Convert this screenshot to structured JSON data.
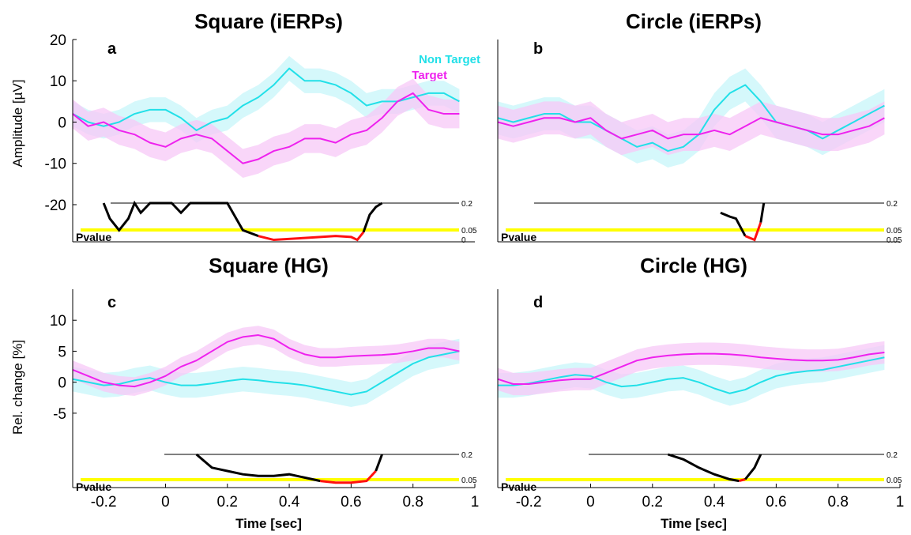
{
  "colors": {
    "non_target": "#22e0e8",
    "target": "#ee22ee",
    "non_target_band": "#c7f6fa",
    "target_band": "#f7c8f7",
    "pvalue_line": "#000000",
    "significant": "#ff1010",
    "threshold_05": "#ffff00"
  },
  "legend": {
    "non_target": "Non Target",
    "target": "Target"
  },
  "chart_data": [
    {
      "type": "line",
      "panel": "a",
      "title": "Square (iERPs)",
      "ylabel": "Amplitude [µV]",
      "xlabel": "",
      "xlim": [
        -0.3,
        1.0
      ],
      "ylim": [
        -29,
        20
      ],
      "yticks": [
        -20,
        -10,
        0,
        10,
        20
      ],
      "x_tick_labels_shown": false,
      "series": [
        {
          "name": "Non Target",
          "x": [
            -0.3,
            -0.25,
            -0.2,
            -0.15,
            -0.1,
            -0.05,
            0,
            0.05,
            0.1,
            0.15,
            0.2,
            0.25,
            0.3,
            0.35,
            0.4,
            0.45,
            0.5,
            0.55,
            0.6,
            0.65,
            0.7,
            0.75,
            0.8,
            0.85,
            0.9,
            0.95
          ],
          "values": [
            2,
            0,
            -1,
            0,
            2,
            3,
            3,
            1,
            -2,
            0,
            1,
            4,
            6,
            9,
            13,
            10,
            10,
            9,
            7,
            4,
            5,
            5,
            6,
            7,
            7,
            5
          ],
          "band": 3
        },
        {
          "name": "Target",
          "x": [
            -0.3,
            -0.25,
            -0.2,
            -0.15,
            -0.1,
            -0.05,
            0,
            0.05,
            0.1,
            0.15,
            0.2,
            0.25,
            0.3,
            0.35,
            0.4,
            0.45,
            0.5,
            0.55,
            0.6,
            0.65,
            0.7,
            0.75,
            0.8,
            0.85,
            0.9,
            0.95
          ],
          "values": [
            2,
            -1,
            0,
            -2,
            -3,
            -5,
            -6,
            -4,
            -3,
            -4,
            -7,
            -10,
            -9,
            -7,
            -6,
            -4,
            -4,
            -5,
            -3,
            -2,
            1,
            5,
            7,
            3,
            2,
            2
          ],
          "band": 3.5
        }
      ],
      "pvalue": {
        "label": "Pvalue",
        "ref_labels": [
          "0.2",
          "0.05",
          "0"
        ],
        "x": [
          -0.2,
          -0.18,
          -0.15,
          -0.12,
          -0.1,
          -0.08,
          -0.05,
          0.02,
          0.05,
          0.08,
          0.1,
          0.2,
          0.25,
          0.3,
          0.35,
          0.45,
          0.55,
          0.6,
          0.62,
          0.64,
          0.66,
          0.68,
          0.7
        ],
        "p": [
          0.2,
          0.12,
          0.06,
          0.12,
          0.2,
          0.15,
          0.2,
          0.2,
          0.15,
          0.2,
          0.2,
          0.2,
          0.06,
          0.03,
          0.01,
          0.02,
          0.03,
          0.025,
          0.01,
          0.05,
          0.14,
          0.18,
          0.2
        ]
      }
    },
    {
      "type": "line",
      "panel": "b",
      "title": "Circle (iERPs)",
      "ylabel": "",
      "xlabel": "",
      "xlim": [
        -0.3,
        1.0
      ],
      "ylim": [
        -29,
        20
      ],
      "x_tick_labels_shown": false,
      "series": [
        {
          "name": "Non Target",
          "x": [
            -0.3,
            -0.25,
            -0.2,
            -0.15,
            -0.1,
            -0.05,
            0,
            0.05,
            0.1,
            0.15,
            0.2,
            0.25,
            0.3,
            0.35,
            0.4,
            0.45,
            0.5,
            0.55,
            0.6,
            0.65,
            0.7,
            0.75,
            0.8,
            0.85,
            0.9,
            0.95
          ],
          "values": [
            1,
            0,
            1,
            2,
            2,
            0,
            0,
            -2,
            -4,
            -6,
            -5,
            -7,
            -6,
            -3,
            3,
            7,
            9,
            5,
            0,
            -1,
            -2,
            -4,
            -2,
            0,
            2,
            4
          ],
          "band": 4
        },
        {
          "name": "Target",
          "x": [
            -0.3,
            -0.25,
            -0.2,
            -0.15,
            -0.1,
            -0.05,
            0,
            0.05,
            0.1,
            0.15,
            0.2,
            0.25,
            0.3,
            0.35,
            0.4,
            0.45,
            0.5,
            0.55,
            0.6,
            0.65,
            0.7,
            0.75,
            0.8,
            0.85,
            0.9,
            0.95
          ],
          "values": [
            0,
            -1,
            0,
            1,
            1,
            0,
            1,
            -2,
            -4,
            -3,
            -2,
            -4,
            -3,
            -3,
            -2,
            -3,
            -1,
            1,
            0,
            -1,
            -2,
            -3,
            -3,
            -2,
            -1,
            1
          ],
          "band": 4
        }
      ],
      "pvalue": {
        "label": "Pvalue",
        "ref_labels": [
          "0.2",
          "0.05",
          "0.05"
        ],
        "x": [
          0.42,
          0.45,
          0.47,
          0.5,
          0.53,
          0.55,
          0.56
        ],
        "p": [
          0.15,
          0.13,
          0.12,
          0.03,
          0.01,
          0.1,
          0.2
        ]
      }
    },
    {
      "type": "line",
      "panel": "c",
      "title": "Square (HG)",
      "ylabel": "Rel. change [%]",
      "xlabel": "Time [sec]",
      "xlim": [
        -0.3,
        1.0
      ],
      "ylim": [
        -17,
        15
      ],
      "yticks": [
        -5,
        0,
        5,
        10
      ],
      "xticks": [
        -0.2,
        0,
        0.2,
        0.4,
        0.6,
        0.8,
        1
      ],
      "x_tick_labels": [
        "-0.2",
        "0",
        "0.2",
        "0.4",
        "0.6",
        "0.8",
        "1"
      ],
      "series": [
        {
          "name": "Non Target",
          "x": [
            -0.3,
            -0.25,
            -0.2,
            -0.15,
            -0.1,
            -0.05,
            0,
            0.05,
            0.1,
            0.15,
            0.2,
            0.25,
            0.3,
            0.35,
            0.4,
            0.45,
            0.5,
            0.55,
            0.6,
            0.65,
            0.7,
            0.75,
            0.8,
            0.85,
            0.9,
            0.95
          ],
          "values": [
            0.5,
            0,
            -0.5,
            -0.3,
            0.3,
            0.7,
            0,
            -0.5,
            -0.5,
            -0.2,
            0.2,
            0.5,
            0.3,
            0,
            -0.2,
            -0.5,
            -1,
            -1.5,
            -2,
            -1.5,
            0,
            1.5,
            3,
            4,
            4.5,
            5
          ],
          "band": 2
        },
        {
          "name": "Target",
          "x": [
            -0.3,
            -0.25,
            -0.2,
            -0.15,
            -0.1,
            -0.05,
            0,
            0.05,
            0.1,
            0.15,
            0.2,
            0.25,
            0.3,
            0.35,
            0.4,
            0.45,
            0.5,
            0.55,
            0.6,
            0.65,
            0.7,
            0.75,
            0.8,
            0.85,
            0.9,
            0.95
          ],
          "values": [
            2,
            1,
            0,
            -0.5,
            -0.7,
            0,
            1,
            2.5,
            3.5,
            5,
            6.5,
            7.3,
            7.6,
            7,
            5.5,
            4.5,
            4,
            4,
            4.2,
            4.3,
            4.4,
            4.6,
            5,
            5.5,
            5.5,
            5
          ],
          "band": 1.5
        }
      ],
      "pvalue": {
        "label": "Pvalue",
        "ref_labels": [
          "0.2",
          "0.05"
        ],
        "x": [
          0.1,
          0.15,
          0.2,
          0.25,
          0.3,
          0.35,
          0.4,
          0.45,
          0.5,
          0.55,
          0.6,
          0.65,
          0.68,
          0.7
        ],
        "p": [
          0.2,
          0.12,
          0.1,
          0.08,
          0.07,
          0.07,
          0.08,
          0.06,
          0.04,
          0.03,
          0.03,
          0.04,
          0.1,
          0.2
        ]
      }
    },
    {
      "type": "line",
      "panel": "d",
      "title": "Circle (HG)",
      "ylabel": "",
      "xlabel": "Time [sec]",
      "xlim": [
        -0.3,
        1.0
      ],
      "ylim": [
        -17,
        15
      ],
      "xticks": [
        -0.2,
        0,
        0.2,
        0.4,
        0.6,
        0.8,
        1
      ],
      "x_tick_labels": [
        "-0.2",
        "0",
        "0.2",
        "0.4",
        "0.6",
        "0.8",
        "1"
      ],
      "series": [
        {
          "name": "Non Target",
          "x": [
            -0.3,
            -0.25,
            -0.2,
            -0.15,
            -0.1,
            -0.05,
            0,
            0.05,
            0.1,
            0.15,
            0.2,
            0.25,
            0.3,
            0.35,
            0.4,
            0.45,
            0.5,
            0.55,
            0.6,
            0.65,
            0.7,
            0.75,
            0.8,
            0.85,
            0.9,
            0.95
          ],
          "values": [
            -0.5,
            -0.5,
            -0.2,
            0.3,
            0.8,
            1.2,
            1,
            0,
            -0.7,
            -0.5,
            0,
            0.5,
            0.7,
            0,
            -1,
            -1.8,
            -1.2,
            0,
            1,
            1.5,
            1.8,
            2,
            2.5,
            3,
            3.5,
            4
          ],
          "band": 2
        },
        {
          "name": "Target",
          "x": [
            -0.3,
            -0.25,
            -0.2,
            -0.15,
            -0.1,
            -0.05,
            0,
            0.05,
            0.1,
            0.15,
            0.2,
            0.25,
            0.3,
            0.35,
            0.4,
            0.45,
            0.5,
            0.55,
            0.6,
            0.65,
            0.7,
            0.75,
            0.8,
            0.85,
            0.9,
            0.95
          ],
          "values": [
            0.5,
            -0.3,
            -0.3,
            0,
            0.3,
            0.5,
            0.5,
            1.5,
            2.5,
            3.5,
            4,
            4.3,
            4.5,
            4.6,
            4.6,
            4.5,
            4.3,
            4,
            3.8,
            3.6,
            3.5,
            3.5,
            3.6,
            4,
            4.5,
            4.8
          ],
          "band": 1.8
        }
      ],
      "pvalue": {
        "label": "Pvalue",
        "ref_labels": [
          "0.2",
          "0.05"
        ],
        "x": [
          0.25,
          0.3,
          0.35,
          0.4,
          0.45,
          0.48,
          0.5,
          0.53,
          0.55
        ],
        "p": [
          0.2,
          0.17,
          0.12,
          0.08,
          0.05,
          0.04,
          0.05,
          0.12,
          0.2
        ]
      }
    }
  ]
}
